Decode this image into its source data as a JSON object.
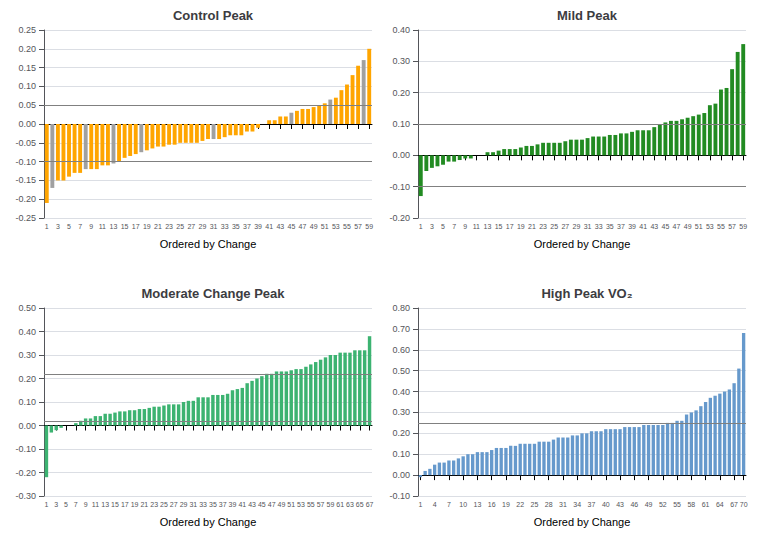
{
  "chart_data": [
    {
      "type": "bar",
      "title": "Control Peak",
      "xlabel": "Ordered by Change",
      "categories": [
        "1",
        null,
        "3",
        null,
        "5",
        null,
        "7",
        null,
        "9",
        null,
        "11",
        null,
        "13",
        null,
        "15",
        null,
        "17",
        null,
        "19",
        null,
        "21",
        null,
        "23",
        null,
        "25",
        null,
        "27",
        null,
        "29",
        null,
        "31",
        null,
        "33",
        null,
        "35",
        null,
        "37",
        null,
        "39",
        null,
        "41",
        null,
        "43",
        null,
        "45",
        null,
        "47",
        null,
        "49",
        null,
        "51",
        null,
        "53",
        null,
        "55",
        null,
        "57",
        null,
        "59"
      ],
      "values": [
        -0.21,
        -0.17,
        -0.15,
        -0.15,
        -0.14,
        -0.13,
        -0.13,
        -0.12,
        -0.12,
        -0.12,
        -0.11,
        -0.11,
        -0.105,
        -0.1,
        -0.09,
        -0.085,
        -0.08,
        -0.075,
        -0.07,
        -0.065,
        -0.06,
        -0.06,
        -0.055,
        -0.055,
        -0.05,
        -0.05,
        -0.05,
        -0.05,
        -0.045,
        -0.04,
        -0.04,
        -0.04,
        -0.035,
        -0.03,
        -0.03,
        -0.03,
        -0.02,
        -0.02,
        -0.01,
        0.0,
        0.01,
        0.01,
        0.02,
        0.02,
        0.03,
        0.035,
        0.04,
        0.04,
        0.045,
        0.05,
        0.055,
        0.065,
        0.07,
        0.09,
        0.105,
        0.13,
        0.155,
        0.17,
        0.2
      ],
      "colors": [
        "#FFA500",
        "#A0A0A0",
        "#FFA500",
        "#FFA500",
        "#FFA500",
        "#FFA500",
        "#FFA500",
        "#A0A0A0",
        "#FFA500",
        "#FFA500",
        "#FFA500",
        "#FFA500",
        "#A0A0A0",
        "#FFA500",
        "#FFA500",
        "#FFA500",
        "#FFA500",
        "#A0A0A0",
        "#FFA500",
        "#FFA500",
        "#FFA500",
        "#FFA500",
        "#FFA500",
        "#FFA500",
        "#FFA500",
        "#FFA500",
        "#FFA500",
        "#FFA500",
        "#FFA500",
        "#FFA500",
        "#A0A0A0",
        "#FFA500",
        "#FFA500",
        "#FFA500",
        "#FFA500",
        "#FFA500",
        "#FFA500",
        "#FFA500",
        "#FFA500",
        "#A0A0A0",
        "#FFA500",
        "#FFA500",
        "#FFA500",
        "#FFA500",
        "#A0A0A0",
        "#FFA500",
        "#FFA500",
        "#FFA500",
        "#FFA500",
        "#FFA500",
        "#FFA500",
        "#A0A0A0",
        "#FFA500",
        "#FFA500",
        "#FFA500",
        "#FFA500",
        "#FFA500",
        "#A0A0A0",
        "#FFA500"
      ],
      "hlines": [
        {
          "value": -0.1,
          "color": "#808080"
        },
        {
          "value": 0.05,
          "color": "#808080"
        }
      ],
      "ylim": [
        -0.25,
        0.25
      ],
      "yticks": [
        -0.25,
        {
          "value": -0.2,
          "label": "-0.20"
        },
        -0.15,
        {
          "value": -0.1,
          "label": "-0.10"
        },
        -0.05,
        {
          "value": 0,
          "label": "0.00"
        },
        0.05,
        {
          "value": 0.1,
          "label": "0.10"
        },
        0.15,
        {
          "value": 0.2,
          "label": "0.20"
        },
        0.25
      ],
      "grid": true
    },
    {
      "type": "bar",
      "title": "Mild Peak",
      "xlabel": "Ordered by Change",
      "categories": [
        "1",
        null,
        "3",
        null,
        "5",
        null,
        "7",
        null,
        "9",
        null,
        "11",
        null,
        "13",
        null,
        "15",
        null,
        "17",
        null,
        "19",
        null,
        "21",
        null,
        "23",
        null,
        "25",
        null,
        "27",
        null,
        "29",
        null,
        "31",
        null,
        "33",
        null,
        "35",
        null,
        "37",
        null,
        "39",
        null,
        "41",
        null,
        "43",
        null,
        "45",
        null,
        "47",
        null,
        "49",
        null,
        "51",
        null,
        "53",
        null,
        "55",
        null,
        "57",
        null,
        "59"
      ],
      "values": [
        -0.13,
        -0.05,
        -0.04,
        -0.035,
        -0.03,
        -0.02,
        -0.02,
        -0.015,
        -0.01,
        -0.01,
        0.0,
        0.0,
        0.01,
        0.01,
        0.015,
        0.02,
        0.02,
        0.02,
        0.025,
        0.03,
        0.03,
        0.035,
        0.04,
        0.04,
        0.04,
        0.04,
        0.045,
        0.05,
        0.05,
        0.05,
        0.055,
        0.06,
        0.06,
        0.06,
        0.065,
        0.065,
        0.07,
        0.07,
        0.075,
        0.08,
        0.08,
        0.08,
        0.09,
        0.1,
        0.105,
        0.11,
        0.11,
        0.115,
        0.12,
        0.125,
        0.13,
        0.135,
        0.16,
        0.165,
        0.21,
        0.215,
        0.275,
        0.33,
        0.355
      ],
      "color": "#228B22",
      "hlines": [
        {
          "value": -0.1,
          "color": "#808080"
        },
        {
          "value": 0.1,
          "color": "#808080"
        }
      ],
      "ylim": [
        -0.2,
        0.4
      ],
      "yticks": [
        {
          "value": -0.2,
          "label": "-0.20"
        },
        {
          "value": -0.1,
          "label": "-0.10"
        },
        {
          "value": 0,
          "label": "0.00"
        },
        {
          "value": 0.1,
          "label": "0.10"
        },
        {
          "value": 0.2,
          "label": "0.20"
        },
        {
          "value": 0.3,
          "label": "0.30"
        },
        {
          "value": 0.4,
          "label": "0.40"
        }
      ],
      "grid": true
    },
    {
      "type": "bar",
      "title": "Moderate Change Peak",
      "xlabel": "Ordered by Change",
      "categories": [
        "1",
        null,
        "3",
        null,
        "5",
        null,
        "7",
        null,
        "9",
        null,
        "11",
        null,
        "13",
        null,
        "15",
        null,
        "17",
        null,
        "19",
        null,
        "21",
        null,
        "23",
        null,
        "25",
        null,
        "27",
        null,
        "29",
        null,
        "31",
        null,
        "33",
        null,
        "35",
        null,
        "37",
        null,
        "39",
        null,
        "41",
        null,
        "43",
        null,
        "45",
        null,
        "47",
        null,
        "49",
        null,
        "51",
        null,
        "53",
        null,
        "55",
        null,
        "57",
        null,
        "59",
        null,
        "61",
        null,
        "63",
        null,
        "65",
        null,
        "67"
      ],
      "values": [
        -0.22,
        -0.03,
        -0.02,
        -0.01,
        0.0,
        0.0,
        0.01,
        0.02,
        0.03,
        0.03,
        0.04,
        0.04,
        0.05,
        0.05,
        0.055,
        0.06,
        0.06,
        0.065,
        0.065,
        0.07,
        0.07,
        0.075,
        0.08,
        0.08,
        0.085,
        0.09,
        0.09,
        0.09,
        0.1,
        0.105,
        0.105,
        0.12,
        0.12,
        0.12,
        0.13,
        0.13,
        0.13,
        0.135,
        0.15,
        0.155,
        0.16,
        0.18,
        0.19,
        0.2,
        0.21,
        0.22,
        0.22,
        0.23,
        0.23,
        0.23,
        0.235,
        0.24,
        0.24,
        0.25,
        0.26,
        0.27,
        0.28,
        0.29,
        0.3,
        0.3,
        0.31,
        0.31,
        0.31,
        0.32,
        0.32,
        0.32,
        0.38
      ],
      "color": "#3CB371",
      "hlines": [
        {
          "value": 0.02,
          "color": "#808080"
        },
        {
          "value": 0.22,
          "color": "#808080"
        }
      ],
      "ylim": [
        -0.3,
        0.5
      ],
      "yticks": [
        {
          "value": -0.3,
          "label": "-0.30"
        },
        {
          "value": -0.2,
          "label": "-0.20"
        },
        {
          "value": -0.1,
          "label": "-0.10"
        },
        {
          "value": 0,
          "label": "0.00"
        },
        {
          "value": 0.1,
          "label": "0.10"
        },
        {
          "value": 0.2,
          "label": "0.20"
        },
        {
          "value": 0.3,
          "label": "0.30"
        },
        {
          "value": 0.4,
          "label": "0.40"
        },
        {
          "value": 0.5,
          "label": "0.50"
        }
      ],
      "grid": true
    },
    {
      "type": "bar",
      "title": "High Peak VO₂",
      "xlabel": "Ordered by Change",
      "categories": [
        "1",
        null,
        null,
        "4",
        null,
        null,
        "7",
        null,
        null,
        "10",
        null,
        null,
        "13",
        null,
        null,
        "16",
        null,
        null,
        "19",
        null,
        null,
        "22",
        null,
        null,
        "25",
        null,
        null,
        "28",
        null,
        null,
        "31",
        null,
        null,
        "34",
        null,
        null,
        "37",
        null,
        null,
        "40",
        null,
        null,
        "43",
        null,
        null,
        "46",
        null,
        null,
        "49",
        null,
        null,
        "52",
        null,
        null,
        "55",
        null,
        null,
        "58",
        null,
        null,
        "61",
        null,
        null,
        "64",
        null,
        null,
        "67",
        null,
        "70"
      ],
      "values": [
        -0.01,
        0.02,
        0.03,
        0.05,
        0.06,
        0.06,
        0.07,
        0.07,
        0.08,
        0.09,
        0.1,
        0.1,
        0.11,
        0.11,
        0.11,
        0.12,
        0.13,
        0.13,
        0.13,
        0.14,
        0.14,
        0.15,
        0.15,
        0.15,
        0.15,
        0.16,
        0.16,
        0.16,
        0.17,
        0.18,
        0.18,
        0.18,
        0.19,
        0.19,
        0.2,
        0.2,
        0.21,
        0.21,
        0.21,
        0.22,
        0.22,
        0.22,
        0.22,
        0.23,
        0.23,
        0.23,
        0.23,
        0.24,
        0.24,
        0.24,
        0.24,
        0.24,
        0.25,
        0.25,
        0.26,
        0.26,
        0.29,
        0.3,
        0.31,
        0.33,
        0.35,
        0.37,
        0.38,
        0.39,
        0.4,
        0.41,
        0.44,
        0.51,
        0.68
      ],
      "color": "#6699CC",
      "hlines": [
        {
          "value": 0.25,
          "color": "#808080"
        }
      ],
      "ylim": [
        -0.1,
        0.8
      ],
      "yticks": [
        {
          "value": -0.1,
          "label": "-0.10"
        },
        {
          "value": 0,
          "label": "0.00"
        },
        {
          "value": 0.1,
          "label": "0.10"
        },
        {
          "value": 0.2,
          "label": "0.20"
        },
        {
          "value": 0.3,
          "label": "0.30"
        },
        {
          "value": 0.4,
          "label": "0.40"
        },
        {
          "value": 0.5,
          "label": "0.50"
        },
        {
          "value": 0.6,
          "label": "0.60"
        },
        {
          "value": 0.7,
          "label": "0.70"
        },
        {
          "value": 0.8,
          "label": "0.80"
        }
      ],
      "grid": true
    }
  ]
}
